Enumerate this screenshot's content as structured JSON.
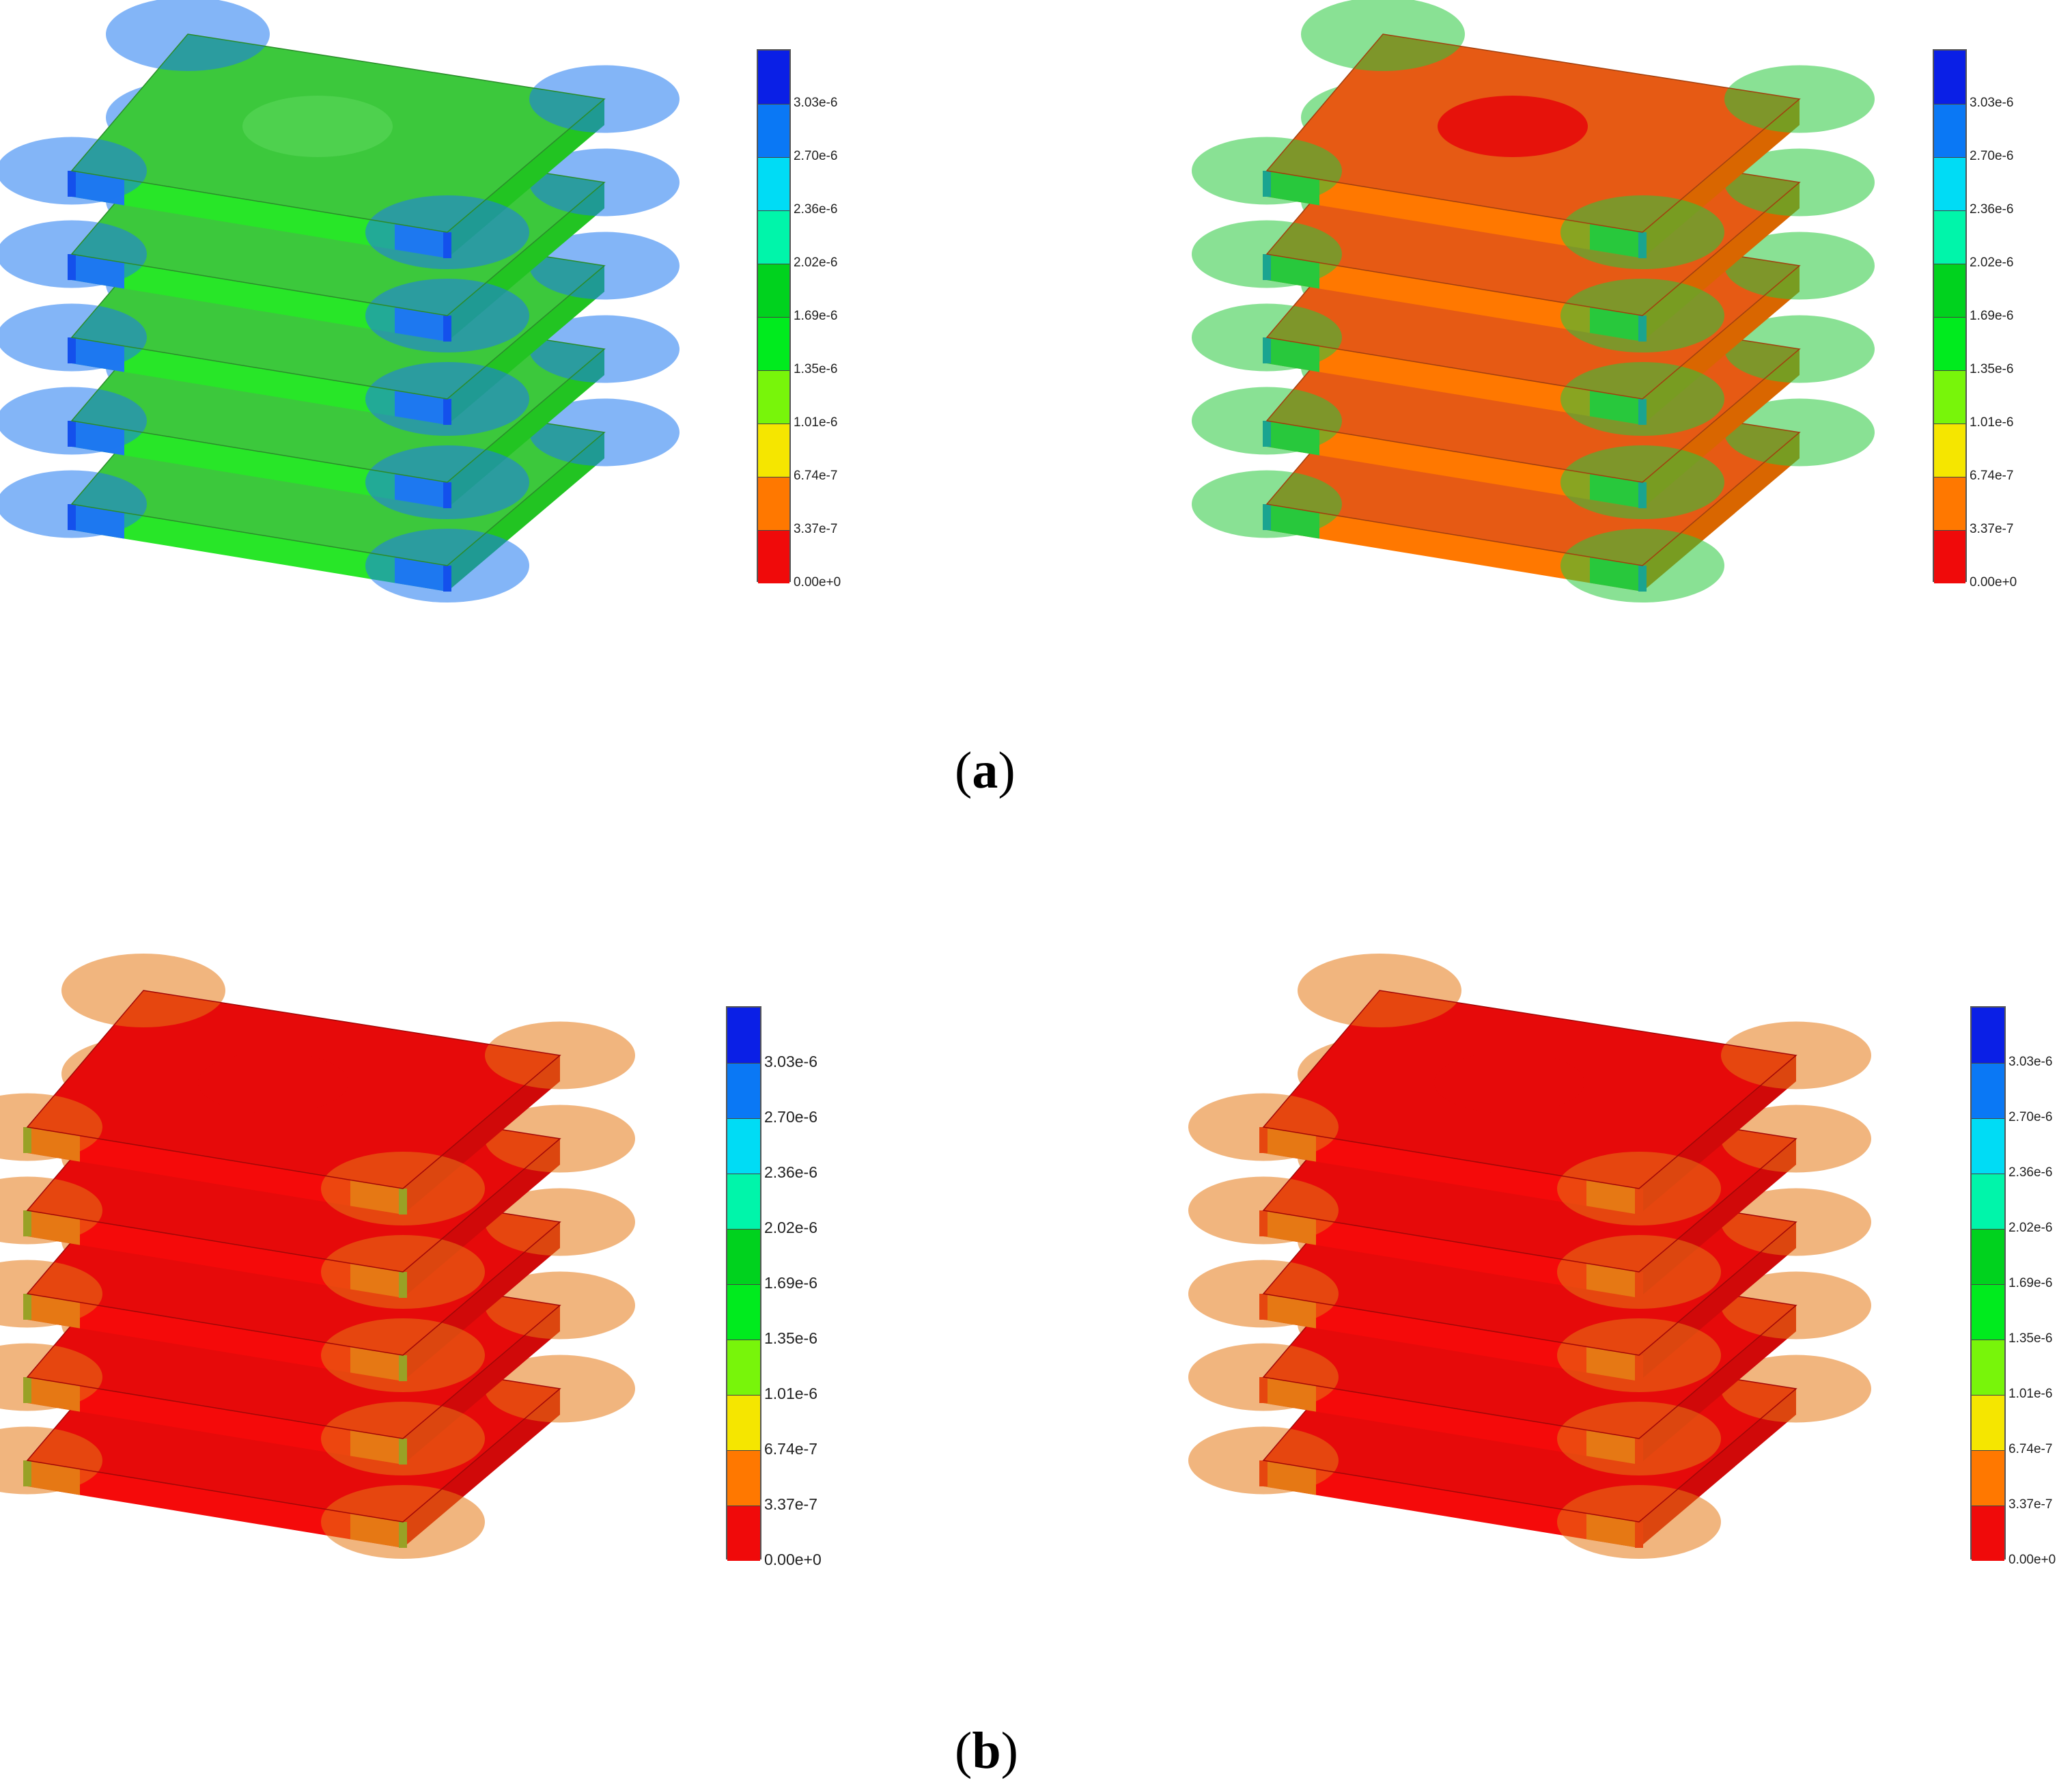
{
  "captions": {
    "a": "a",
    "b": "b"
  },
  "color_scale": {
    "ticks": [
      "3.03e-6",
      "2.70e-6",
      "2.36e-6",
      "2.02e-6",
      "1.69e-6",
      "1.35e-6",
      "1.01e-6",
      "6.74e-7",
      "3.37e-7",
      "0.00e+0"
    ],
    "colors": [
      "#0a1fe6",
      "#0a78f5",
      "#00dcf5",
      "#00f5aa",
      "#00d21e",
      "#00eb1e",
      "#78f50a",
      "#f5e600",
      "#ff7800",
      "#f00a0a"
    ]
  },
  "panels": [
    {
      "id": "a-left",
      "top": "#3cc83c",
      "side": "#28e628",
      "band": "#1e78f0",
      "edge": "#0a1fe6",
      "accent": "#50d250"
    },
    {
      "id": "a-right",
      "top": "#e65a14",
      "side": "#ff7800",
      "band": "#28c83c",
      "edge": "#0a78f5",
      "accent": "#e60a0a"
    },
    {
      "id": "b-left",
      "top": "#e60a0a",
      "side": "#f50a0a",
      "band": "#e67814",
      "edge": "#3cd23c",
      "accent": "#e60a0a"
    },
    {
      "id": "b-right",
      "top": "#e60a0a",
      "side": "#f50a0a",
      "band": "#e67814",
      "edge": "#e60a0a",
      "accent": "#e60a0a"
    }
  ]
}
